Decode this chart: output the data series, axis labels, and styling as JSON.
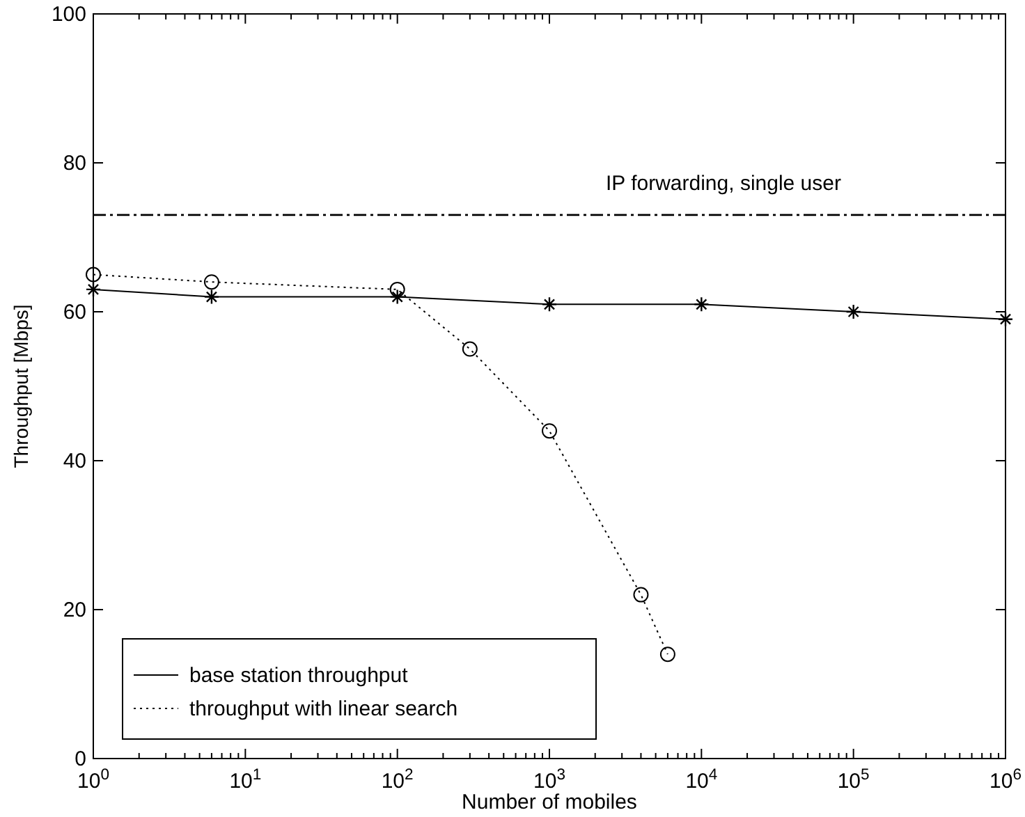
{
  "chart_data": {
    "type": "line",
    "xlabel": "Number of mobiles",
    "ylabel": "Throughput [Mbps]",
    "log": "x",
    "xlim": [
      1,
      1000000
    ],
    "xticks": [
      {
        "value": 1,
        "label": "10$^{0}$"
      },
      {
        "value": 10,
        "label": "10$^{1}$"
      },
      {
        "value": 100,
        "label": "10$^{2}$"
      },
      {
        "value": 1000,
        "label": "10$^{3}$"
      },
      {
        "value": 10000,
        "label": "10$^{4}$"
      },
      {
        "value": 100000,
        "label": "10$^{5}$"
      },
      {
        "value": 1000000,
        "label": "10$^{6}$"
      }
    ],
    "ylim": [
      0,
      100
    ],
    "yticks": [
      0,
      20,
      40,
      60,
      80,
      100
    ],
    "grid": false,
    "legend": "bottom left",
    "series": [
      {
        "name": "base station throughput",
        "color": "#000000",
        "line_style": "solid",
        "marker": "cross",
        "x": [
          1,
          6,
          100,
          1000,
          10000,
          100000,
          1000000
        ],
        "values": [
          63,
          62,
          62,
          61,
          61,
          60,
          59
        ]
      },
      {
        "name": "throughput with linear search",
        "color": "#000000",
        "line_style": "dotted",
        "marker": "circle",
        "x": [
          1,
          6,
          100,
          300,
          1000,
          4000,
          6000
        ],
        "values": [
          65,
          64,
          63,
          55,
          44,
          22,
          14
        ]
      }
    ],
    "ref_lines": [
      {
        "axis": "y",
        "value": 73,
        "label": "IP forwarding, single user",
        "line_style": "dashed",
        "color": "#000000"
      }
    ]
  }
}
